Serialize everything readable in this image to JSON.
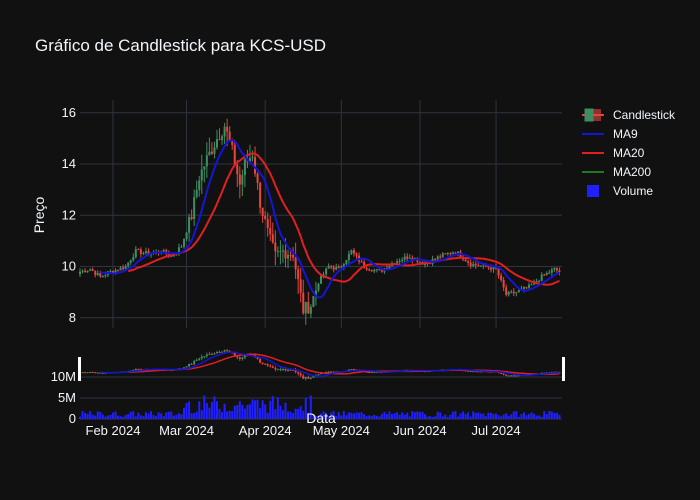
{
  "chart_data": {
    "type": "candlestick",
    "title": "Gráfico de Candlestick para KCS-USD",
    "ylabel": "Preço",
    "xlabel": "Data",
    "ylim": [
      7.6,
      16.5
    ],
    "y_ticks": [
      8,
      10,
      12,
      14,
      16
    ],
    "volume_ticks": [
      {
        "value": 0,
        "label": "0"
      },
      {
        "value": 5000000,
        "label": "5M"
      },
      {
        "value": 10000000,
        "label": "10M"
      }
    ],
    "x_ticks": [
      "Feb 2024",
      "Mar 2024",
      "Apr 2024",
      "May 2024",
      "Jun 2024",
      "Jul 2024"
    ],
    "x_tick_days": [
      31,
      60,
      91,
      121,
      152,
      182
    ],
    "legend": {
      "placement": "top-right",
      "entries": [
        {
          "name": "Candlestick",
          "kind": "candle"
        },
        {
          "name": "MA9",
          "kind": "line",
          "color": "#1515d6"
        },
        {
          "name": "MA20",
          "kind": "line",
          "color": "#e02020"
        },
        {
          "name": "MA200",
          "kind": "line",
          "color": "#1f7a1f"
        },
        {
          "name": "Volume",
          "kind": "square",
          "color": "#1f1fff"
        }
      ]
    },
    "colors": {
      "up": "#3d8f62",
      "down": "#e8453c",
      "ma9": "#1515d6",
      "ma20": "#e02020",
      "volume": "#1f1fff",
      "background": "#111111",
      "grid": "#2e3440",
      "text": "#f2f5fa"
    },
    "price_profile": [
      {
        "day": 18,
        "close": 9.8
      },
      {
        "day": 22,
        "close": 9.9
      },
      {
        "day": 26,
        "close": 9.6
      },
      {
        "day": 30,
        "close": 9.8
      },
      {
        "day": 36,
        "close": 10.0
      },
      {
        "day": 40,
        "close": 10.6
      },
      {
        "day": 45,
        "close": 10.5
      },
      {
        "day": 50,
        "close": 10.6
      },
      {
        "day": 54,
        "close": 10.4
      },
      {
        "day": 58,
        "close": 10.8
      },
      {
        "day": 62,
        "close": 12.0
      },
      {
        "day": 65,
        "close": 13.5
      },
      {
        "day": 68,
        "close": 14.2
      },
      {
        "day": 72,
        "close": 15.0
      },
      {
        "day": 75,
        "close": 15.5
      },
      {
        "day": 78,
        "close": 14.5
      },
      {
        "day": 81,
        "close": 13.2
      },
      {
        "day": 83,
        "close": 14.0
      },
      {
        "day": 86,
        "close": 14.4
      },
      {
        "day": 89,
        "close": 12.5
      },
      {
        "day": 92,
        "close": 11.3
      },
      {
        "day": 95,
        "close": 10.4
      },
      {
        "day": 98,
        "close": 10.6
      },
      {
        "day": 102,
        "close": 10.5
      },
      {
        "day": 106,
        "close": 8.3
      },
      {
        "day": 109,
        "close": 8.5
      },
      {
        "day": 112,
        "close": 9.4
      },
      {
        "day": 116,
        "close": 10.0
      },
      {
        "day": 120,
        "close": 9.9
      },
      {
        "day": 125,
        "close": 10.6
      },
      {
        "day": 130,
        "close": 10.0
      },
      {
        "day": 136,
        "close": 9.8
      },
      {
        "day": 142,
        "close": 10.2
      },
      {
        "day": 148,
        "close": 10.4
      },
      {
        "day": 154,
        "close": 10.1
      },
      {
        "day": 160,
        "close": 10.4
      },
      {
        "day": 166,
        "close": 10.6
      },
      {
        "day": 172,
        "close": 10.1
      },
      {
        "day": 178,
        "close": 10.0
      },
      {
        "day": 182,
        "close": 9.9
      },
      {
        "day": 186,
        "close": 8.9
      },
      {
        "day": 190,
        "close": 9.0
      },
      {
        "day": 195,
        "close": 9.2
      },
      {
        "day": 200,
        "close": 9.6
      },
      {
        "day": 205,
        "close": 9.9
      },
      {
        "day": 207,
        "close": 9.8
      }
    ]
  }
}
